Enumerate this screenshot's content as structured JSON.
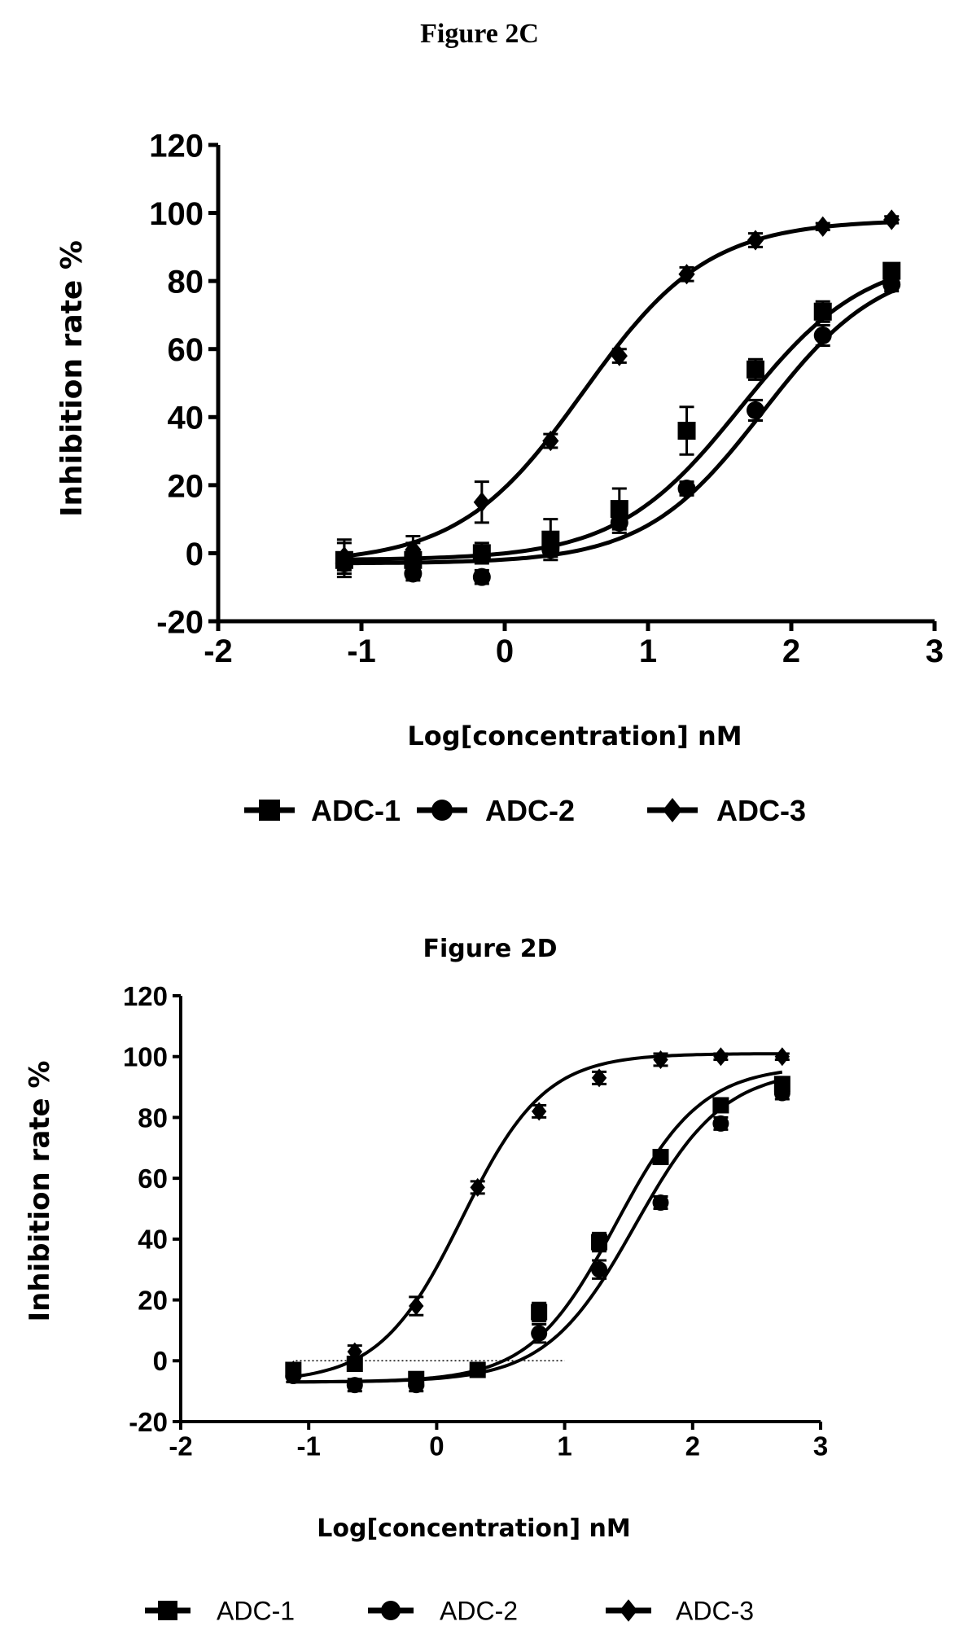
{
  "chart_data": [
    {
      "type": "scatter",
      "title": "Figure 2C",
      "xlabel": "Log[concentration] nM",
      "ylabel": "Inhibition rate %",
      "xlim": [
        -2,
        3
      ],
      "ylim": [
        -20,
        120
      ],
      "xticks": [
        "-2",
        "-1",
        "0",
        "1",
        "2",
        "3"
      ],
      "yticks": [
        "-20",
        "0",
        "20",
        "40",
        "60",
        "80",
        "100",
        "120"
      ],
      "grid": false,
      "legend_position": "bottom",
      "color": "#000000",
      "series": [
        {
          "name": "ADC-1",
          "marker": "square",
          "x": [
            -1.12,
            -0.64,
            -0.16,
            0.32,
            0.8,
            1.27,
            1.75,
            2.22,
            2.7
          ],
          "y": [
            -2,
            -2,
            0,
            4,
            13,
            36,
            54,
            71,
            83
          ],
          "err": [
            5,
            5,
            3,
            6,
            6,
            7,
            3,
            3,
            2
          ],
          "fit": {
            "bottom": -2,
            "top": 88,
            "logEC50": 1.65,
            "hill": 1.0
          }
        },
        {
          "name": "ADC-2",
          "marker": "circle",
          "x": [
            -1.12,
            -0.64,
            -0.16,
            0.32,
            0.8,
            1.27,
            1.75,
            2.22,
            2.7
          ],
          "y": [
            -3,
            -6,
            -7,
            1,
            9,
            19,
            42,
            64,
            79
          ],
          "err": [
            2,
            2,
            2,
            2,
            3,
            2,
            3,
            3,
            2
          ],
          "fit": {
            "bottom": -3,
            "top": 86,
            "logEC50": 1.8,
            "hill": 1.05
          }
        },
        {
          "name": "ADC-3",
          "marker": "diamond",
          "x": [
            -1.12,
            -0.64,
            -0.16,
            0.32,
            0.8,
            1.27,
            1.75,
            2.22,
            2.7
          ],
          "y": [
            -1,
            1,
            15,
            33,
            58,
            82,
            92,
            96,
            98
          ],
          "err": [
            5,
            4,
            6,
            2,
            2,
            2,
            2,
            1,
            1
          ],
          "fit": {
            "bottom": -3,
            "top": 98,
            "logEC50": 0.55,
            "hill": 1.0
          }
        }
      ]
    },
    {
      "type": "scatter",
      "title": "Figure 2D",
      "xlabel": "Log[concentration] nM",
      "ylabel": "Inhibition rate %",
      "xlim": [
        -2,
        3
      ],
      "ylim": [
        -20,
        120
      ],
      "xticks": [
        "-2",
        "-1",
        "0",
        "1",
        "2",
        "3"
      ],
      "yticks": [
        "-20",
        "0",
        "20",
        "40",
        "60",
        "80",
        "100",
        "120"
      ],
      "grid": false,
      "legend_position": "bottom",
      "color": "#000000",
      "series": [
        {
          "name": "ADC-1",
          "marker": "square",
          "x": [
            -1.12,
            -0.64,
            -0.16,
            0.32,
            0.8,
            1.27,
            1.75,
            2.22,
            2.7
          ],
          "y": [
            -3,
            -1,
            -6,
            -3,
            16,
            39,
            67,
            84,
            91
          ],
          "err": [
            2,
            2,
            2,
            2,
            3,
            3,
            2,
            2,
            2
          ],
          "fit": {
            "bottom": -7,
            "top": 97,
            "logEC50": 1.4,
            "hill": 1.3
          }
        },
        {
          "name": "ADC-2",
          "marker": "circle",
          "x": [
            -1.12,
            -0.64,
            -0.16,
            0.32,
            0.8,
            1.27,
            1.75,
            2.22,
            2.7
          ],
          "y": [
            -5,
            -8,
            -8,
            -3,
            9,
            30,
            52,
            78,
            88
          ],
          "err": [
            2,
            2,
            2,
            2,
            3,
            3,
            2,
            2,
            2
          ],
          "fit": {
            "bottom": -7,
            "top": 96,
            "logEC50": 1.55,
            "hill": 1.25
          }
        },
        {
          "name": "ADC-3",
          "marker": "diamond",
          "x": [
            -1.12,
            -0.64,
            -0.16,
            0.32,
            0.8,
            1.27,
            1.75,
            2.22,
            2.7
          ],
          "y": [
            -3,
            3,
            18,
            57,
            82,
            93,
            99,
            100,
            100
          ],
          "err": [
            2,
            2,
            3,
            2,
            2,
            2,
            2,
            1,
            1
          ],
          "fit": {
            "bottom": -7,
            "top": 101,
            "logEC50": 0.2,
            "hill": 1.35
          }
        }
      ]
    }
  ]
}
